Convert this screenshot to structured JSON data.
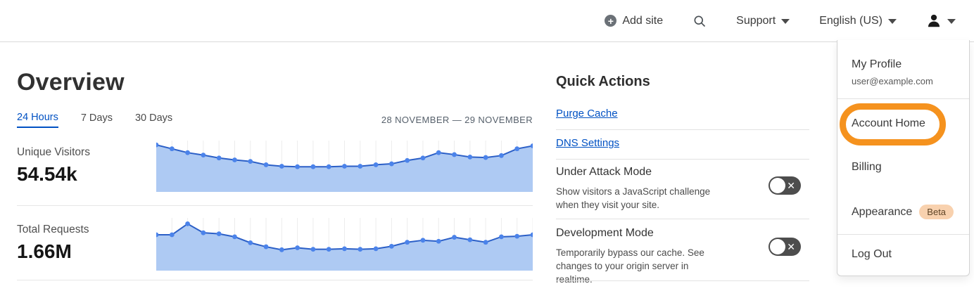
{
  "header": {
    "add_site": "Add site",
    "support": "Support",
    "language": "English (US)"
  },
  "overview": {
    "title": "Overview",
    "tabs": [
      {
        "label": "24 Hours",
        "active": true
      },
      {
        "label": "7 Days",
        "active": false
      },
      {
        "label": "30 Days",
        "active": false
      }
    ],
    "date_range": "28 NOVEMBER — 29 NOVEMBER",
    "metrics": [
      {
        "label": "Unique Visitors",
        "value": "54.54k"
      },
      {
        "label": "Total Requests",
        "value": "1.66M"
      }
    ]
  },
  "quick_actions": {
    "title": "Quick Actions",
    "links": [
      "Purge Cache",
      "DNS Settings"
    ],
    "toggles": [
      {
        "title": "Under Attack Mode",
        "description": "Show visitors a JavaScript challenge when they visit your site.",
        "state": "off"
      },
      {
        "title": "Development Mode",
        "description": "Temporarily bypass our cache. See changes to your origin server in realtime.",
        "state": "off"
      }
    ]
  },
  "user_menu": {
    "profile": {
      "label": "My Profile",
      "email": "user@example.com"
    },
    "items": [
      {
        "label": "Account Home",
        "highlighted": true
      },
      {
        "label": "Billing"
      },
      {
        "label": "Appearance",
        "badge": "Beta"
      },
      {
        "label": "Log Out"
      }
    ]
  },
  "chart_data": [
    {
      "type": "area",
      "title": "Unique Visitors — 24 Hours sparkline",
      "xlabel": "",
      "ylabel": "",
      "ylim": [
        0,
        1
      ],
      "grid": "vertical",
      "legend": "none",
      "values": [
        0.94,
        0.86,
        0.78,
        0.73,
        0.67,
        0.63,
        0.6,
        0.53,
        0.5,
        0.49,
        0.49,
        0.49,
        0.5,
        0.5,
        0.53,
        0.55,
        0.62,
        0.67,
        0.78,
        0.74,
        0.69,
        0.68,
        0.72,
        0.86,
        0.92
      ]
    },
    {
      "type": "area",
      "title": "Total Requests — 24 Hours sparkline",
      "xlabel": "",
      "ylabel": "",
      "ylim": [
        0,
        1
      ],
      "grid": "vertical",
      "legend": "none",
      "values": [
        0.69,
        0.69,
        0.91,
        0.73,
        0.71,
        0.65,
        0.53,
        0.45,
        0.39,
        0.43,
        0.4,
        0.4,
        0.41,
        0.4,
        0.41,
        0.46,
        0.54,
        0.58,
        0.56,
        0.64,
        0.59,
        0.54,
        0.65,
        0.66,
        0.69
      ]
    }
  ],
  "colors": {
    "accent_blue": "#0051c3",
    "chart_line": "#2b5fc7",
    "chart_fill": "#aecaf3",
    "chart_point": "#4b83ea",
    "chart_grid": "#ececec",
    "annotation_orange": "#f5921e",
    "toggle_bg": "#4d4d4d",
    "beta_bg": "#f8d1ae"
  }
}
